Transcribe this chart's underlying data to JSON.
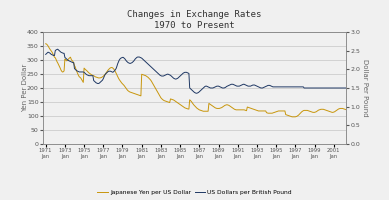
{
  "title_line1": "Changes in Exchange Rates",
  "title_line2": "1970 to Present",
  "ylabel_left": "Yen Per Dollar",
  "ylabel_right": "Dollar Per Pound",
  "ylim_left": [
    0,
    400
  ],
  "ylim_right": [
    0.0,
    3.0
  ],
  "yticks_left": [
    0,
    50,
    100,
    150,
    200,
    250,
    300,
    350,
    400
  ],
  "yticks_right": [
    0.0,
    0.5,
    1.0,
    1.5,
    2.0,
    2.5,
    3.0
  ],
  "xtick_years": [
    1971,
    1973,
    1975,
    1977,
    1979,
    1981,
    1983,
    1985,
    1987,
    1989,
    1991,
    1993,
    1995,
    1997,
    1999,
    2001
  ],
  "color_yen": "#C8960C",
  "color_pound": "#1F3864",
  "legend_labels": [
    "Japanese Yen per US Dollar",
    "US Dollars per British Pound"
  ],
  "background_color": "#f0f0f0",
  "plot_bg_color": "#f0f0f0",
  "xlim": [
    1970.7,
    2002.3
  ],
  "yen_data": [
    358,
    357,
    354,
    350,
    345,
    340,
    336,
    332,
    328,
    322,
    316,
    310,
    308,
    302,
    295,
    290,
    284,
    278,
    272,
    265,
    260,
    257,
    258,
    261,
    303,
    301,
    297,
    298,
    302,
    305,
    308,
    310,
    302,
    298,
    295,
    290,
    280,
    275,
    265,
    258,
    250,
    245,
    240,
    238,
    235,
    230,
    225,
    220,
    271,
    268,
    265,
    263,
    260,
    257,
    254,
    252,
    250,
    248,
    246,
    245,
    244,
    242,
    240,
    239,
    238,
    237,
    236,
    236,
    236,
    237,
    238,
    240,
    242,
    245,
    248,
    252,
    256,
    260,
    264,
    267,
    270,
    272,
    273,
    273,
    271,
    268,
    264,
    259,
    253,
    247,
    241,
    235,
    230,
    226,
    222,
    218,
    215,
    212,
    209,
    205,
    201,
    197,
    193,
    190,
    188,
    186,
    185,
    184,
    183,
    182,
    181,
    180,
    179,
    178,
    177,
    176,
    175,
    174,
    173,
    172,
    249,
    248,
    247,
    246,
    245,
    244,
    242,
    240,
    238,
    235,
    232,
    229,
    225,
    220,
    215,
    210,
    205,
    200,
    195,
    190,
    185,
    180,
    175,
    170,
    165,
    162,
    159,
    157,
    155,
    154,
    153,
    152,
    151,
    150,
    149,
    148,
    161,
    160,
    159,
    158,
    157,
    155,
    153,
    151,
    149,
    147,
    145,
    143,
    141,
    139,
    137,
    135,
    133,
    131,
    129,
    128,
    127,
    126,
    125,
    125,
    158,
    155,
    152,
    148,
    144,
    140,
    137,
    134,
    131,
    128,
    126,
    124,
    122,
    121,
    120,
    119,
    118,
    117,
    117,
    117,
    117,
    117,
    117,
    117,
    145,
    143,
    141,
    139,
    137,
    135,
    133,
    131,
    129,
    128,
    127,
    127,
    127,
    127,
    128,
    129,
    130,
    132,
    134,
    136,
    138,
    139,
    140,
    140,
    139,
    138,
    136,
    134,
    132,
    130,
    128,
    126,
    124,
    123,
    122,
    122,
    122,
    122,
    122,
    122,
    122,
    122,
    122,
    122,
    122,
    121,
    120,
    119,
    132,
    131,
    130,
    129,
    128,
    127,
    126,
    125,
    124,
    123,
    122,
    121,
    120,
    119,
    118,
    118,
    118,
    118,
    118,
    118,
    118,
    118,
    118,
    118,
    112,
    111,
    110,
    110,
    110,
    110,
    110,
    110,
    111,
    112,
    113,
    114,
    115,
    116,
    117,
    118,
    118,
    118,
    118,
    118,
    118,
    118,
    118,
    118,
    105,
    104,
    103,
    102,
    101,
    100,
    99,
    98,
    97,
    97,
    97,
    97,
    97,
    98,
    99,
    101,
    103,
    106,
    109,
    112,
    115,
    117,
    119,
    120,
    120,
    120,
    120,
    120,
    119,
    118,
    117,
    116,
    115,
    114,
    113,
    113,
    113,
    114,
    115,
    117,
    119,
    121,
    122,
    123,
    124,
    124,
    124,
    124,
    123,
    122,
    121,
    120,
    119,
    118,
    117,
    116,
    115,
    114,
    113,
    113,
    114,
    115,
    117,
    119,
    121,
    123,
    125,
    126,
    127,
    127,
    127,
    127,
    126,
    125,
    124,
    123,
    122,
    121,
    120,
    119,
    118,
    118,
    118,
    118,
    118,
    119,
    120,
    121,
    122,
    123,
    124,
    124,
    124,
    123,
    122,
    121,
    120,
    119,
    118,
    118,
    118,
    118,
    118,
    119,
    120,
    121,
    122,
    122,
    122,
    122,
    121,
    120,
    119,
    118,
    118,
    118,
    119,
    120,
    122,
    124,
    125,
    126,
    127,
    127,
    127,
    127,
    126,
    125,
    124,
    123,
    122,
    122,
    130,
    130,
    130,
    130,
    130,
    130,
    130,
    130,
    130,
    130,
    130,
    130
  ],
  "pound_data": [
    2.4,
    2.42,
    2.44,
    2.46,
    2.45,
    2.44,
    2.42,
    2.4,
    2.39,
    2.38,
    2.37,
    2.37,
    2.5,
    2.52,
    2.53,
    2.54,
    2.52,
    2.5,
    2.48,
    2.46,
    2.45,
    2.44,
    2.43,
    2.43,
    2.32,
    2.3,
    2.28,
    2.26,
    2.24,
    2.23,
    2.22,
    2.21,
    2.2,
    2.19,
    2.18,
    2.18,
    2.02,
    2.0,
    1.98,
    1.96,
    1.95,
    1.94,
    1.93,
    1.93,
    1.93,
    1.93,
    1.93,
    1.93,
    1.92,
    1.9,
    1.88,
    1.86,
    1.85,
    1.84,
    1.83,
    1.83,
    1.83,
    1.83,
    1.83,
    1.83,
    1.7,
    1.68,
    1.66,
    1.64,
    1.63,
    1.62,
    1.62,
    1.63,
    1.65,
    1.67,
    1.69,
    1.71,
    1.75,
    1.8,
    1.85,
    1.88,
    1.9,
    1.92,
    1.94,
    1.95,
    1.95,
    1.95,
    1.94,
    1.93,
    1.92,
    1.94,
    1.96,
    1.99,
    2.02,
    2.08,
    2.15,
    2.2,
    2.25,
    2.28,
    2.3,
    2.31,
    2.32,
    2.32,
    2.3,
    2.28,
    2.25,
    2.22,
    2.2,
    2.18,
    2.17,
    2.16,
    2.16,
    2.17,
    2.18,
    2.2,
    2.22,
    2.25,
    2.28,
    2.3,
    2.32,
    2.33,
    2.33,
    2.33,
    2.32,
    2.31,
    2.3,
    2.28,
    2.26,
    2.24,
    2.22,
    2.2,
    2.18,
    2.16,
    2.14,
    2.12,
    2.1,
    2.08,
    2.06,
    2.04,
    2.02,
    2.0,
    1.98,
    1.96,
    1.94,
    1.92,
    1.9,
    1.88,
    1.86,
    1.84,
    1.83,
    1.82,
    1.82,
    1.82,
    1.83,
    1.84,
    1.85,
    1.86,
    1.87,
    1.87,
    1.86,
    1.85,
    1.84,
    1.82,
    1.8,
    1.78,
    1.76,
    1.75,
    1.74,
    1.74,
    1.75,
    1.76,
    1.78,
    1.8,
    1.82,
    1.84,
    1.86,
    1.88,
    1.9,
    1.91,
    1.92,
    1.92,
    1.92,
    1.91,
    1.9,
    1.89,
    1.5,
    1.48,
    1.46,
    1.44,
    1.42,
    1.4,
    1.38,
    1.37,
    1.36,
    1.36,
    1.37,
    1.38,
    1.4,
    1.42,
    1.44,
    1.46,
    1.48,
    1.5,
    1.52,
    1.54,
    1.55,
    1.55,
    1.54,
    1.53,
    1.52,
    1.51,
    1.5,
    1.5,
    1.5,
    1.5,
    1.51,
    1.52,
    1.53,
    1.54,
    1.55,
    1.55,
    1.55,
    1.54,
    1.53,
    1.52,
    1.51,
    1.5,
    1.5,
    1.5,
    1.51,
    1.52,
    1.54,
    1.55,
    1.56,
    1.57,
    1.58,
    1.59,
    1.6,
    1.6,
    1.6,
    1.59,
    1.58,
    1.57,
    1.56,
    1.55,
    1.55,
    1.55,
    1.55,
    1.56,
    1.57,
    1.58,
    1.59,
    1.6,
    1.6,
    1.59,
    1.58,
    1.57,
    1.56,
    1.55,
    1.55,
    1.55,
    1.55,
    1.56,
    1.57,
    1.58,
    1.58,
    1.58,
    1.57,
    1.56,
    1.55,
    1.54,
    1.53,
    1.52,
    1.51,
    1.5,
    1.5,
    1.5,
    1.51,
    1.52,
    1.53,
    1.54,
    1.55,
    1.56,
    1.57,
    1.57,
    1.57,
    1.56,
    1.55,
    1.54,
    1.53,
    1.53,
    1.53,
    1.53,
    1.53,
    1.53,
    1.53,
    1.53,
    1.53,
    1.53,
    1.53,
    1.53,
    1.53,
    1.53,
    1.53,
    1.53,
    1.53,
    1.53,
    1.53,
    1.53,
    1.53,
    1.53,
    1.53,
    1.53,
    1.53,
    1.53,
    1.53,
    1.53,
    1.53,
    1.53,
    1.53,
    1.53,
    1.53,
    1.53,
    1.53,
    1.53,
    1.53,
    1.53,
    1.53,
    1.5,
    1.5,
    1.5,
    1.5,
    1.5,
    1.5,
    1.5,
    1.5,
    1.5,
    1.5,
    1.5,
    1.5,
    1.5,
    1.5,
    1.5,
    1.5,
    1.5,
    1.5,
    1.5,
    1.5,
    1.5,
    1.5,
    1.5,
    1.5,
    1.5,
    1.5,
    1.5,
    1.5,
    1.5,
    1.5,
    1.5,
    1.5,
    1.5,
    1.5,
    1.5,
    1.5,
    1.5,
    1.5,
    1.5,
    1.5,
    1.5,
    1.5,
    1.5,
    1.5,
    1.5,
    1.5,
    1.5,
    1.5,
    1.5,
    1.5,
    1.5,
    1.5,
    1.5,
    1.5,
    1.5,
    1.5,
    1.5,
    1.5,
    1.5,
    1.5,
    1.5,
    1.5,
    1.5,
    1.5,
    1.5,
    1.5,
    1.5,
    1.5,
    1.5,
    1.5,
    1.5,
    1.5,
    1.5,
    1.5,
    1.5,
    1.5,
    1.5,
    1.5,
    1.5,
    1.5,
    1.5,
    1.5,
    1.5,
    1.5,
    1.5,
    1.5,
    1.5,
    1.5,
    1.5,
    1.5,
    1.5,
    1.5,
    1.5,
    1.5,
    1.5,
    1.5,
    1.5,
    1.5,
    1.5,
    1.5,
    1.5,
    1.5,
    1.5,
    1.5,
    1.5,
    1.5,
    1.5,
    1.5,
    1.5,
    1.5,
    1.5,
    1.5,
    1.5,
    1.5,
    1.5,
    1.5,
    1.5,
    1.5,
    1.5,
    1.5,
    1.5
  ]
}
